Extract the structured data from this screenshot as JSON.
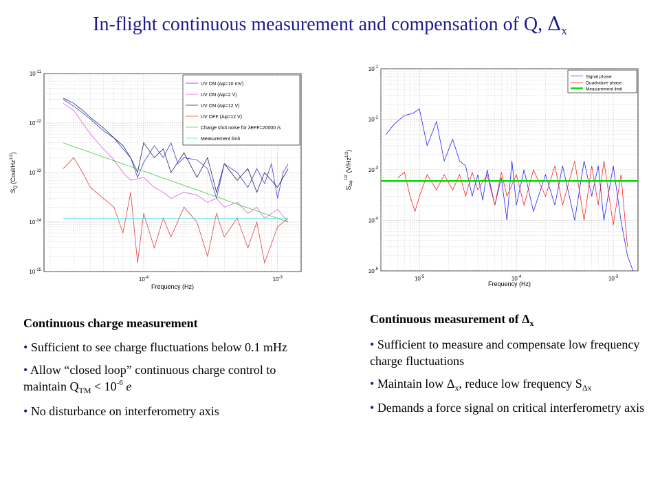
{
  "title": {
    "text": "In-flight continuous measurement and compensation of Q, ",
    "symbol": "Δ",
    "subscript": "x"
  },
  "left_text": {
    "heading": "Continuous charge measurement",
    "bullets": [
      {
        "text": "Sufficient to see charge fluctuations below 0.1 mHz"
      },
      {
        "text_a": "Allow “closed loop” continuous charge control to maintain Q",
        "sub": "TM",
        "text_b": " < 10",
        "sup": "-6",
        "text_c": " e"
      },
      {
        "text": "No disturbance on interferometry axis"
      }
    ]
  },
  "right_text": {
    "heading_a": "Continuous measurement of ",
    "heading_symbol": "Δ",
    "heading_sub": "x",
    "bullets": [
      {
        "text": "Sufficient to measure and compensate low frequency charge fluctuations"
      },
      {
        "text_a": "Maintain low ",
        "symbol": "Δ",
        "sub": "x",
        "text_b": ", reduce low frequency S",
        "sub2": "Δx"
      },
      {
        "text": "Demands a force signal on critical interferometry axis"
      }
    ]
  },
  "colors": {
    "title": "#1c1c8a",
    "bullet": "#1c1c8a",
    "uv_on_10mv": "#3b3bd6",
    "uv_on_2v": "#e05ee0",
    "uv_on_12v": "#202060",
    "uv_off_12v": "#e04040",
    "shot_noise": "#40d040",
    "measurement_limit_left": "#40e0e0",
    "signal_phase": "#2020ff",
    "quadrature_phase": "#ff2020",
    "measurement_limit_right": "#00dd00"
  },
  "chart_data": [
    {
      "type": "line",
      "xlabel": "Frequency (Hz)",
      "ylabel": "S_Q (Coul/Hz^1/2)",
      "xscale": "log",
      "yscale": "log",
      "xlim": [
        1.8e-05,
        0.0015
      ],
      "ylim": [
        1e-15,
        1e-11
      ],
      "grid": true,
      "legend_position": "top-right",
      "x_ticks": [
        "10^-4",
        "10^-3"
      ],
      "y_ticks": [
        "10^-15",
        "10^-14",
        "10^-13",
        "10^-12"
      ],
      "series": [
        {
          "name": "UV ON (Δφ=10 mV)",
          "color": "#3b3bd6",
          "x": [
            2.5e-05,
            3e-05,
            3.5e-05,
            4e-05,
            4.5e-05,
            5e-05,
            6e-05,
            7e-05,
            8e-05,
            9e-05,
            0.0001,
            0.00012,
            0.00014,
            0.00016,
            0.00018,
            0.0002,
            0.00025,
            0.0003,
            0.00035,
            0.0004,
            0.0005,
            0.0006,
            0.0007,
            0.0008,
            0.0009,
            0.001,
            0.0011,
            0.0012
          ],
          "y": [
            3e-12,
            2.2e-12,
            1.6e-12,
            1.2e-12,
            9e-13,
            7e-13,
            5e-13,
            3e-13,
            2e-13,
            8e-14,
            1.6e-13,
            3.5e-13,
            2e-13,
            4e-13,
            1.5e-13,
            2e-13,
            1.8e-13,
            1.2e-13,
            3e-14,
            1.5e-13,
            1e-13,
            5e-14,
            1.2e-13,
            6e-14,
            1.5e-13,
            3e-14,
            1e-13,
            1.5e-13
          ]
        },
        {
          "name": "UV ON (Δφ=2 V)",
          "color": "#e05ee0",
          "x": [
            2.5e-05,
            3e-05,
            3.5e-05,
            4e-05,
            5e-05,
            6e-05,
            7e-05,
            8e-05,
            0.0001,
            0.00012,
            0.00014,
            0.00016,
            0.0002,
            0.00025,
            0.0003,
            0.00035,
            0.0004,
            0.0005,
            0.0006,
            0.0007,
            0.0008,
            0.001,
            0.0012
          ],
          "y": [
            2.5e-12,
            1.8e-12,
            1e-12,
            6e-13,
            3e-13,
            1.8e-13,
            1e-13,
            7e-14,
            8e-14,
            5e-14,
            4e-14,
            3e-14,
            4e-14,
            3.5e-14,
            2.5e-14,
            3e-14,
            2e-14,
            2.5e-14,
            1.5e-14,
            2e-14,
            1.2e-14,
            1.8e-14,
            1e-14
          ]
        },
        {
          "name": "UV ON (Δφ=12 V)",
          "color": "#202060",
          "x": [
            2.5e-05,
            3e-05,
            3.5e-05,
            4e-05,
            5e-05,
            6e-05,
            7e-05,
            8e-05,
            9e-05,
            0.0001,
            0.00012,
            0.00014,
            0.00016,
            0.0002,
            0.00025,
            0.0003,
            0.00035,
            0.0004,
            0.0005,
            0.0006,
            0.0007,
            0.0008,
            0.001,
            0.0012
          ],
          "y": [
            3.2e-12,
            2.5e-12,
            1.8e-12,
            1.3e-12,
            8e-13,
            5e-13,
            3.5e-13,
            2e-13,
            1e-13,
            4e-13,
            2e-13,
            3e-13,
            1e-13,
            2.5e-13,
            8e-14,
            2e-13,
            4e-14,
            1.5e-13,
            7e-14,
            1.2e-13,
            4e-14,
            1e-13,
            5e-14,
            1.2e-13
          ]
        },
        {
          "name": "UV OFF (Δφ=12 V)",
          "color": "#e04040",
          "x": [
            2.5e-05,
            3e-05,
            3.5e-05,
            4e-05,
            5e-05,
            6e-05,
            7e-05,
            8e-05,
            9e-05,
            0.0001,
            0.00012,
            0.00014,
            0.00016,
            0.0002,
            0.00025,
            0.0003,
            0.00035,
            0.0004,
            0.0005,
            0.0006,
            0.0007,
            0.0008,
            0.001,
            0.0012
          ],
          "y": [
            1.2e-13,
            2e-13,
            1e-13,
            5e-14,
            3e-14,
            2e-14,
            6e-15,
            4e-14,
            1.5e-15,
            1.5e-14,
            3e-15,
            1.2e-14,
            5e-15,
            2e-14,
            1e-14,
            2e-15,
            1.5e-14,
            5e-15,
            1.2e-14,
            3e-15,
            1e-14,
            1.5e-15,
            8e-15,
            1.2e-14
          ]
        },
        {
          "name": "Charge shot noise for λEFF=20000 /s",
          "color": "#40d040",
          "x": [
            2.5e-05,
            0.0012
          ],
          "y": [
            4e-13,
            1e-14
          ]
        },
        {
          "name": "Measurement limit",
          "color": "#40e0e0",
          "x": [
            2.5e-05,
            0.0012
          ],
          "y": [
            1.2e-14,
            1.2e-14
          ]
        }
      ]
    },
    {
      "type": "line",
      "xlabel": "Frequency (Hz)",
      "ylabel": "S_Δφ^1/2 (V/Hz^1/2)",
      "xscale": "log",
      "yscale": "log",
      "xlim": [
        4e-06,
        0.0018
      ],
      "ylim": [
        1e-05,
        0.1
      ],
      "grid": true,
      "legend_position": "top-right",
      "x_ticks": [
        "10^-5",
        "10^-4",
        "10^-3"
      ],
      "y_ticks": [
        "10^-4",
        "10^-3",
        "10^-2",
        "10^-1"
      ],
      "series": [
        {
          "name": "Signal phase",
          "color": "#2020ff",
          "x": [
            4.5e-06,
            5.5e-06,
            7e-06,
            8.5e-06,
            1e-05,
            1.2e-05,
            1.5e-05,
            1.8e-05,
            2.2e-05,
            2.6e-05,
            3e-05,
            3.5e-05,
            4e-05,
            4.5e-05,
            5e-05,
            6e-05,
            7e-05,
            8e-05,
            9e-05,
            0.0001,
            0.00012,
            0.00015,
            0.0002,
            0.00025,
            0.0003,
            0.0004,
            0.0005,
            0.0006,
            0.0007,
            0.0008,
            0.001,
            0.0012,
            0.0014,
            0.0016
          ],
          "y": [
            0.005,
            0.008,
            0.012,
            0.013,
            0.016,
            0.003,
            0.009,
            0.0015,
            0.004,
            0.0015,
            0.0012,
            0.0003,
            0.0008,
            0.00025,
            0.001,
            0.0002,
            0.0007,
            0.0001,
            0.0015,
            0.0002,
            0.001,
            0.00015,
            0.0008,
            0.0002,
            0.0012,
            0.0001,
            0.0015,
            0.0003,
            0.0012,
            0.0001,
            0.0012,
            0.0001,
            2e-05,
            1e-05
          ]
        },
        {
          "name": "Quadrature phase",
          "color": "#ff2020",
          "x": [
            6e-06,
            7e-06,
            8e-06,
            9e-06,
            1e-05,
            1.2e-05,
            1.5e-05,
            1.8e-05,
            2.2e-05,
            2.6e-05,
            3e-05,
            3.5e-05,
            4e-05,
            5e-05,
            6e-05,
            7e-05,
            8e-05,
            0.0001,
            0.00012,
            0.00015,
            0.0002,
            0.00025,
            0.0003,
            0.0004,
            0.0005,
            0.0006,
            0.0007,
            0.0008,
            0.001,
            0.0012,
            0.0014
          ],
          "y": [
            0.0007,
            0.0009,
            0.0003,
            0.00015,
            0.0003,
            0.0008,
            0.0004,
            0.0008,
            0.0004,
            0.0008,
            0.0003,
            0.0009,
            0.0004,
            0.0008,
            0.0002,
            0.0009,
            0.0003,
            0.0008,
            0.0002,
            0.001,
            0.0003,
            0.0012,
            0.0002,
            0.0015,
            0.0001,
            0.0012,
            0.0002,
            0.0015,
            8e-05,
            0.0008,
            3e-05
          ]
        },
        {
          "name": "Measurement limit",
          "color": "#00dd00",
          "x": [
            4e-06,
            0.0018
          ],
          "y": [
            0.0006,
            0.0006
          ]
        }
      ]
    }
  ]
}
